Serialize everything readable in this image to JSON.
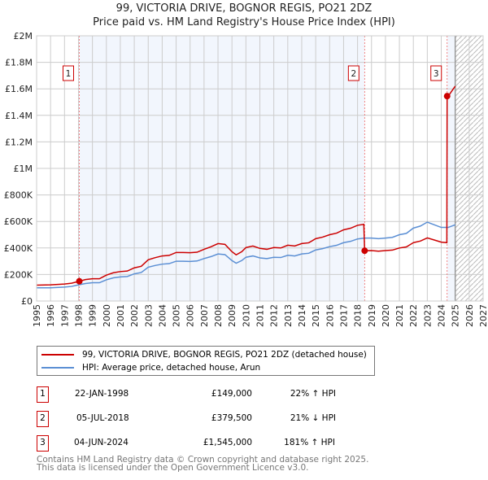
{
  "chart_data": {
    "type": "line",
    "title": "99, VICTORIA DRIVE, BOGNOR REGIS, PO21 2DZ",
    "subtitle": "Price paid vs. HM Land Registry's House Price Index (HPI)",
    "xlim": [
      1995,
      2027
    ],
    "ylim": [
      0,
      2000000
    ],
    "x_ticks": [
      "1995",
      "1996",
      "1997",
      "1998",
      "1999",
      "2000",
      "2001",
      "2002",
      "2003",
      "2004",
      "2005",
      "2006",
      "2007",
      "2008",
      "2009",
      "2010",
      "2011",
      "2012",
      "2013",
      "2014",
      "2015",
      "2016",
      "2017",
      "2018",
      "2019",
      "2020",
      "2021",
      "2022",
      "2023",
      "2024",
      "2025",
      "2026",
      "2027"
    ],
    "y_ticks": [
      {
        "v": 0,
        "label": "£0"
      },
      {
        "v": 200000,
        "label": "£200K"
      },
      {
        "v": 400000,
        "label": "£400K"
      },
      {
        "v": 600000,
        "label": "£600K"
      },
      {
        "v": 800000,
        "label": "£800K"
      },
      {
        "v": 1000000,
        "label": "£1M"
      },
      {
        "v": 1200000,
        "label": "£1.2M"
      },
      {
        "v": 1400000,
        "label": "£1.4M"
      },
      {
        "v": 1600000,
        "label": "£1.6M"
      },
      {
        "v": 1800000,
        "label": "£1.8M"
      },
      {
        "v": 2000000,
        "label": "£2M"
      }
    ],
    "grid": true,
    "forecast_from": 2025,
    "series": [
      {
        "name": "99, VICTORIA DRIVE, BOGNOR REGIS, PO21 2DZ (detached house)",
        "color": "#cc0000",
        "points": [
          [
            1995,
            120
          ],
          [
            1996,
            122
          ],
          [
            1997,
            128
          ],
          [
            1997.5,
            134
          ],
          [
            1998.06,
            149
          ],
          [
            1998.5,
            162
          ],
          [
            1999,
            168
          ],
          [
            1999.5,
            168
          ],
          [
            2000,
            195
          ],
          [
            2000.5,
            213
          ],
          [
            2001,
            222
          ],
          [
            2001.5,
            226
          ],
          [
            2002,
            250
          ],
          [
            2002.5,
            262
          ],
          [
            2003,
            311
          ],
          [
            2003.5,
            327
          ],
          [
            2004,
            340
          ],
          [
            2004.5,
            344
          ],
          [
            2005,
            366
          ],
          [
            2005.5,
            366
          ],
          [
            2006,
            364
          ],
          [
            2006.5,
            368
          ],
          [
            2007,
            390
          ],
          [
            2007.5,
            409
          ],
          [
            2008,
            433
          ],
          [
            2008.5,
            427
          ],
          [
            2009,
            372
          ],
          [
            2009.3,
            348
          ],
          [
            2009.7,
            372
          ],
          [
            2010,
            403
          ],
          [
            2010.5,
            415
          ],
          [
            2011,
            397
          ],
          [
            2011.5,
            390
          ],
          [
            2012,
            403
          ],
          [
            2012.5,
            400
          ],
          [
            2013,
            421
          ],
          [
            2013.5,
            415
          ],
          [
            2014,
            433
          ],
          [
            2014.5,
            439
          ],
          [
            2015,
            470
          ],
          [
            2015.5,
            482
          ],
          [
            2016,
            500
          ],
          [
            2016.5,
            512
          ],
          [
            2017,
            537
          ],
          [
            2017.5,
            549
          ],
          [
            2018,
            571
          ],
          [
            2018.45,
            578
          ],
          [
            2018.51,
            379.5
          ],
          [
            2019,
            380
          ],
          [
            2019.5,
            376
          ],
          [
            2020,
            380
          ],
          [
            2020.5,
            384
          ],
          [
            2021,
            400
          ],
          [
            2021.5,
            408
          ],
          [
            2022,
            440
          ],
          [
            2022.5,
            452
          ],
          [
            2023,
            476
          ],
          [
            2023.5,
            460
          ],
          [
            2024,
            444
          ],
          [
            2024.4,
            440
          ],
          [
            2024.42,
            1545
          ],
          [
            2024.6,
            1560
          ],
          [
            2024.8,
            1590
          ],
          [
            2025,
            1620
          ]
        ]
      },
      {
        "name": "HPI: Average price, detached house, Arun",
        "color": "#5b8fd4",
        "points": [
          [
            1995,
            100
          ],
          [
            1996,
            100
          ],
          [
            1997,
            105
          ],
          [
            1997.5,
            110
          ],
          [
            1998,
            122
          ],
          [
            1998.5,
            132
          ],
          [
            1999,
            138
          ],
          [
            1999.5,
            138
          ],
          [
            2000,
            160
          ],
          [
            2000.5,
            175
          ],
          [
            2001,
            182
          ],
          [
            2001.5,
            185
          ],
          [
            2002,
            205
          ],
          [
            2002.5,
            215
          ],
          [
            2003,
            255
          ],
          [
            2003.5,
            268
          ],
          [
            2004,
            278
          ],
          [
            2004.5,
            282
          ],
          [
            2005,
            300
          ],
          [
            2005.5,
            300
          ],
          [
            2006,
            298
          ],
          [
            2006.5,
            302
          ],
          [
            2007,
            320
          ],
          [
            2007.5,
            335
          ],
          [
            2008,
            355
          ],
          [
            2008.5,
            350
          ],
          [
            2009,
            305
          ],
          [
            2009.3,
            285
          ],
          [
            2009.7,
            305
          ],
          [
            2010,
            330
          ],
          [
            2010.5,
            340
          ],
          [
            2011,
            325
          ],
          [
            2011.5,
            320
          ],
          [
            2012,
            330
          ],
          [
            2012.5,
            328
          ],
          [
            2013,
            345
          ],
          [
            2013.5,
            340
          ],
          [
            2014,
            355
          ],
          [
            2014.5,
            360
          ],
          [
            2015,
            385
          ],
          [
            2015.5,
            395
          ],
          [
            2016,
            410
          ],
          [
            2016.5,
            420
          ],
          [
            2017,
            440
          ],
          [
            2017.5,
            450
          ],
          [
            2018,
            468
          ],
          [
            2018.5,
            475
          ],
          [
            2019,
            475
          ],
          [
            2019.5,
            470
          ],
          [
            2020,
            475
          ],
          [
            2020.5,
            480
          ],
          [
            2021,
            500
          ],
          [
            2021.5,
            510
          ],
          [
            2022,
            550
          ],
          [
            2022.5,
            565
          ],
          [
            2023,
            595
          ],
          [
            2023.5,
            575
          ],
          [
            2024,
            555
          ],
          [
            2024.5,
            555
          ],
          [
            2025,
            575
          ]
        ]
      }
    ],
    "value_units": "thousands GBP",
    "sales": [
      {
        "n": "1",
        "x": 1998.06,
        "y": 149,
        "date": "22-JAN-1998",
        "price": "£149,000",
        "hpi": "22% ↑ HPI"
      },
      {
        "n": "2",
        "x": 2018.51,
        "y": 379.5,
        "date": "05-JUL-2018",
        "price": "£379,500",
        "hpi": "21% ↓ HPI"
      },
      {
        "n": "3",
        "x": 2024.42,
        "y": 1545,
        "date": "04-JUN-2024",
        "price": "£1,545,000",
        "hpi": "181% ↑ HPI"
      }
    ]
  },
  "footer": {
    "line1": "Contains HM Land Registry data © Crown copyright and database right 2025.",
    "line2": "This data is licensed under the Open Government Licence v3.0."
  }
}
